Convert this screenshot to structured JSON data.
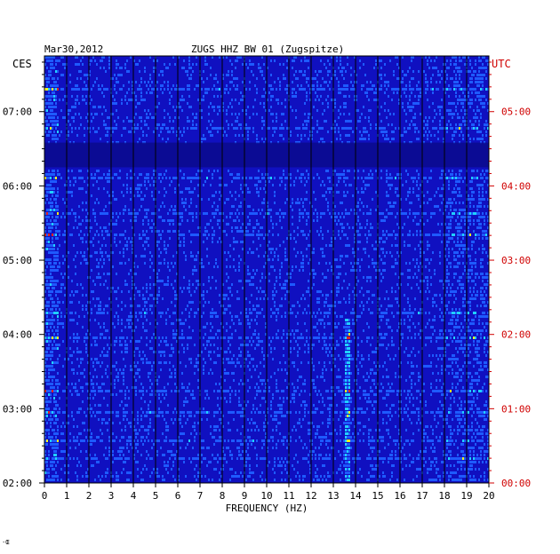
{
  "header": {
    "date": "Mar30,2012",
    "station": "ZUGS HHZ BW 01 (Zugspitze)",
    "left_zone": "CES",
    "right_zone": "UTC"
  },
  "footer_mark": "·Œ",
  "chart_data": {
    "type": "heatmap",
    "xlabel": "FREQUENCY (HZ)",
    "xlim": [
      0,
      20
    ],
    "x_ticks": [
      "0",
      "1",
      "2",
      "3",
      "4",
      "5",
      "6",
      "7",
      "8",
      "9",
      "10",
      "11",
      "12",
      "13",
      "14",
      "15",
      "16",
      "17",
      "18",
      "19",
      "20"
    ],
    "left_time_ticks": [
      "07:00",
      "06:00",
      "05:00",
      "04:00",
      "03:00",
      "02:00"
    ],
    "right_time_ticks": [
      "05:00",
      "04:00",
      "03:00",
      "02:00",
      "01:00",
      "00:00"
    ],
    "time_range_ces": [
      "02:00",
      "07:45"
    ],
    "grid": true,
    "colors": {
      "background": "#1010c0",
      "low": "#0a0a8c",
      "mid": "#1e5aff",
      "high_cyan": "#20d0ff",
      "high_yellow": "#f0f020",
      "peak": "#e02020",
      "utc_label": "#d00000"
    },
    "features": [
      {
        "label": "quiet band",
        "time_ces": [
          "06:15",
          "06:35"
        ]
      },
      {
        "label": "persistent line",
        "freq_hz": 13.6,
        "time_ces": [
          "02:00",
          "04:15"
        ]
      }
    ]
  }
}
